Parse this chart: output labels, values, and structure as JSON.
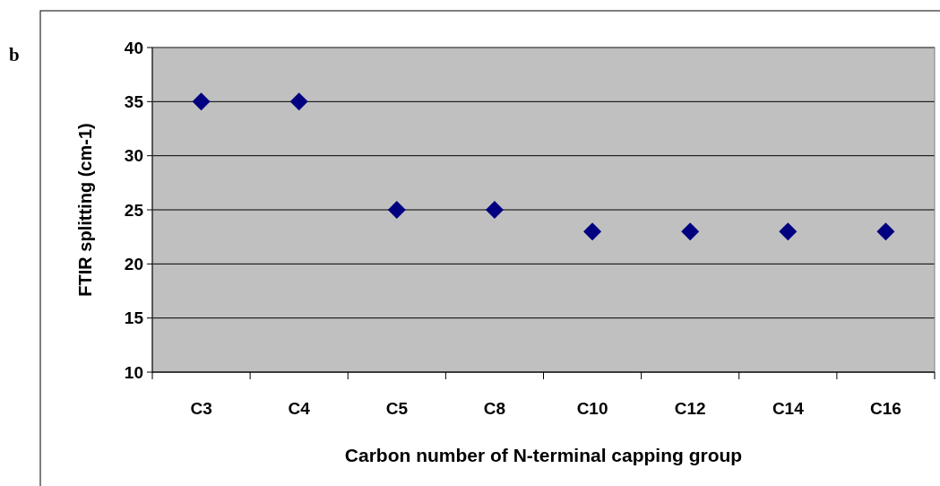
{
  "chart_data": {
    "type": "scatter",
    "xlabel": "Carbon number of N-terminal capping group",
    "ylabel": "FTIR splitting (cm-1)",
    "annotations": [
      "b"
    ],
    "categories": [
      "C3",
      "C4",
      "C5",
      "C8",
      "C10",
      "C12",
      "C14",
      "C16"
    ],
    "series": [
      {
        "color": "#000080",
        "values": [
          35,
          35,
          25,
          25,
          23,
          23,
          23,
          23
        ]
      }
    ],
    "ylim": [
      10,
      40
    ],
    "yticks": [
      10,
      15,
      20,
      25,
      30,
      35,
      40
    ],
    "grid": "y",
    "marker": "diamond"
  }
}
